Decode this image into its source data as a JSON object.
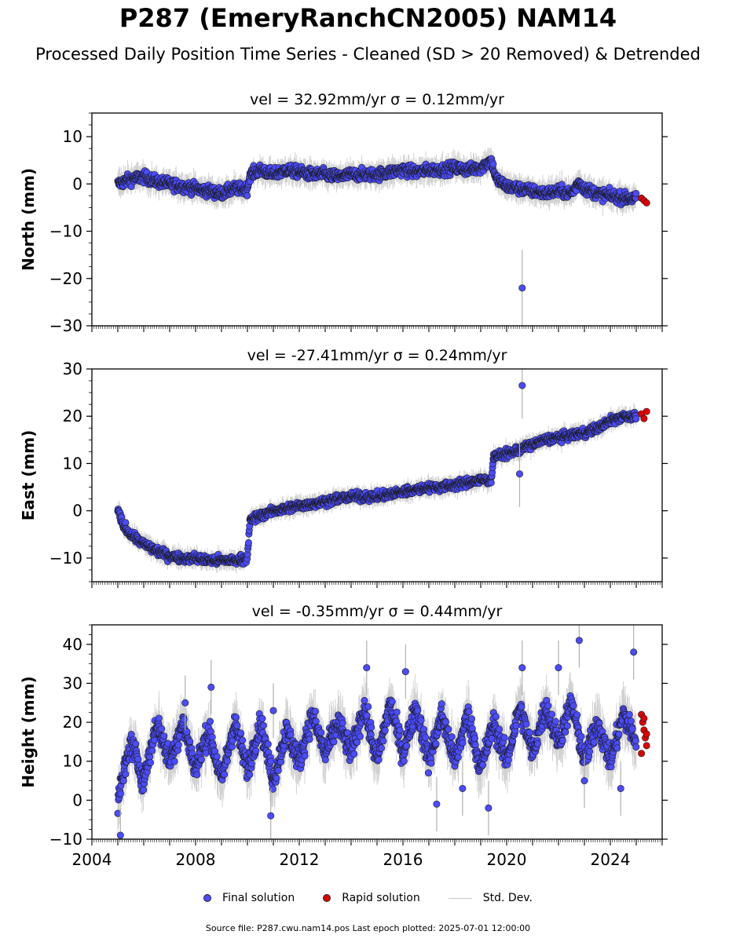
{
  "figure": {
    "title": "P287 (EmeryRanchCN2005) NAM14",
    "subtitle": "Processed Daily Position Time Series - Cleaned (SD > 20 Removed) & Detrended"
  },
  "legend": {
    "final": "Final solution",
    "rapid": "Rapid solution",
    "std": "Std. Dev."
  },
  "footer": "Source file: P287.cwu.nam14.pos  Last epoch plotted: 2025-07-01 12:00:00",
  "colors": {
    "final": "#4b4bff",
    "rapid": "#e00000",
    "std": "#a0a0a0",
    "edge": "#1a1a1a"
  },
  "chart_data": [
    {
      "type": "scatter",
      "title": "vel = 32.92mm/yr   σ = 0.12mm/yr",
      "ylabel": "North (mm)",
      "xlim": [
        2004,
        2026
      ],
      "ylim": [
        -30,
        15
      ],
      "yticks": [
        10,
        0,
        -10,
        -20,
        -30
      ],
      "xticks": [
        2004,
        2008,
        2012,
        2016,
        2020,
        2024
      ],
      "grid": false,
      "series": [
        {
          "name": "Final solution",
          "x": [
            2005.0,
            2005.5,
            2006.0,
            2006.5,
            2007.0,
            2007.5,
            2008.0,
            2008.5,
            2009.0,
            2009.5,
            2010.0,
            2010.1,
            2010.5,
            2011.0,
            2011.5,
            2012.0,
            2012.5,
            2013.0,
            2013.5,
            2014.0,
            2014.5,
            2015.0,
            2015.5,
            2016.0,
            2016.5,
            2017.0,
            2017.5,
            2018.0,
            2018.5,
            2019.0,
            2019.4,
            2019.6,
            2020.0,
            2020.5,
            2021.0,
            2021.5,
            2022.0,
            2022.5,
            2022.8,
            2023.0,
            2023.5,
            2024.0,
            2024.5,
            2025.0
          ],
          "y": [
            0,
            1,
            1.5,
            0.5,
            0,
            -0.5,
            -1,
            -1.5,
            -2,
            -1,
            -1,
            2,
            3,
            2,
            3,
            2.5,
            2,
            2,
            1.5,
            2,
            2,
            2,
            2.5,
            3,
            2.5,
            3,
            3,
            3.5,
            3,
            3.5,
            5,
            1,
            -0.5,
            -1,
            -1.5,
            -2,
            -1.5,
            -2,
            0.5,
            -1,
            -2,
            -2.5,
            -3,
            -3
          ]
        },
        {
          "name": "Final solution outlier",
          "x": [
            2020.6
          ],
          "y": [
            -22
          ]
        },
        {
          "name": "Rapid solution",
          "x": [
            2025.2,
            2025.3,
            2025.4
          ],
          "y": [
            -3,
            -3.5,
            -4
          ]
        }
      ]
    },
    {
      "type": "scatter",
      "title": "vel = -27.41mm/yr   σ = 0.24mm/yr",
      "ylabel": "East (mm)",
      "xlim": [
        2004,
        2026
      ],
      "ylim": [
        -15,
        30
      ],
      "yticks": [
        30,
        20,
        10,
        0,
        -10
      ],
      "xticks": [
        2004,
        2008,
        2012,
        2016,
        2020,
        2024
      ],
      "grid": false,
      "series": [
        {
          "name": "Final solution",
          "x": [
            2005.0,
            2005.2,
            2005.5,
            2006.0,
            2006.5,
            2007.0,
            2007.5,
            2008.0,
            2008.5,
            2009.0,
            2009.5,
            2010.0,
            2010.1,
            2010.5,
            2011.0,
            2011.5,
            2012.0,
            2012.5,
            2013.0,
            2013.5,
            2014.0,
            2014.5,
            2015.0,
            2015.5,
            2016.0,
            2016.5,
            2017.0,
            2017.5,
            2018.0,
            2018.5,
            2019.0,
            2019.4,
            2019.5,
            2020.0,
            2020.5,
            2021.0,
            2021.5,
            2022.0,
            2022.5,
            2023.0,
            2023.5,
            2024.0,
            2024.5,
            2025.0
          ],
          "y": [
            0,
            -3,
            -5,
            -7,
            -8.5,
            -9.5,
            -10,
            -10,
            -10.5,
            -10.5,
            -10.5,
            -10,
            -2,
            -1,
            0,
            0.5,
            1,
            1.5,
            2,
            2.5,
            3,
            3,
            3,
            3.5,
            4,
            4.5,
            5,
            5,
            5.5,
            6,
            6.5,
            6.5,
            11.5,
            12,
            13,
            14,
            15,
            15.5,
            16,
            16.5,
            17.5,
            19,
            20,
            20
          ]
        },
        {
          "name": "Final solution outlier",
          "x": [
            2020.6,
            2020.5
          ],
          "y": [
            26.5,
            7.8
          ]
        },
        {
          "name": "Rapid solution",
          "x": [
            2025.2,
            2025.3,
            2025.4
          ],
          "y": [
            20.5,
            19.5,
            21
          ]
        }
      ]
    },
    {
      "type": "scatter",
      "title": "vel = -0.35mm/yr   σ = 0.44mm/yr",
      "ylabel": "Height (mm)",
      "xlim": [
        2004,
        2026
      ],
      "ylim": [
        -10,
        45
      ],
      "yticks": [
        40,
        30,
        20,
        10,
        0,
        -10
      ],
      "xticks": [
        2004,
        2008,
        2012,
        2016,
        2020,
        2024
      ],
      "xticklabels": [
        "2004",
        "2008",
        "2012",
        "2016",
        "2020",
        "2024"
      ],
      "grid": false,
      "series": [
        {
          "name": "Final solution",
          "x": [
            2005.0,
            2005.5,
            2006.0,
            2006.5,
            2007.0,
            2007.5,
            2008.0,
            2008.5,
            2009.0,
            2009.5,
            2010.0,
            2010.5,
            2011.0,
            2011.5,
            2012.0,
            2012.5,
            2013.0,
            2013.5,
            2014.0,
            2014.5,
            2015.0,
            2015.5,
            2016.0,
            2016.5,
            2017.0,
            2017.5,
            2018.0,
            2018.5,
            2019.0,
            2019.5,
            2020.0,
            2020.5,
            2021.0,
            2021.5,
            2022.0,
            2022.5,
            2023.0,
            2023.5,
            2024.0,
            2024.5,
            2025.0
          ],
          "y": [
            0,
            15,
            5,
            20,
            10,
            20,
            8,
            18,
            5,
            20,
            8,
            20,
            5,
            18,
            10,
            22,
            12,
            20,
            12,
            24,
            10,
            25,
            12,
            24,
            10,
            22,
            10,
            22,
            8,
            20,
            10,
            24,
            12,
            24,
            15,
            25,
            10,
            20,
            10,
            22,
            15
          ]
        },
        {
          "name": "Final solution extremes",
          "x": [
            2005.1,
            2007.6,
            2008.6,
            2010.9,
            2011.0,
            2014.6,
            2017.3,
            2018.3,
            2019.3,
            2020.6,
            2022.8,
            2023.0,
            2024.4,
            2024.9,
            2016.1,
            2022.0
          ],
          "y": [
            -9,
            25,
            29,
            -4,
            23,
            34,
            -1,
            3,
            -2,
            34,
            41,
            5,
            3,
            38,
            33,
            34
          ]
        },
        {
          "name": "Rapid solution",
          "x": [
            2025.2,
            2025.25,
            2025.3,
            2025.35,
            2025.4,
            2025.2,
            2025.3,
            2025.4
          ],
          "y": [
            22,
            20,
            18,
            16,
            14,
            12,
            21,
            17
          ]
        }
      ]
    }
  ]
}
